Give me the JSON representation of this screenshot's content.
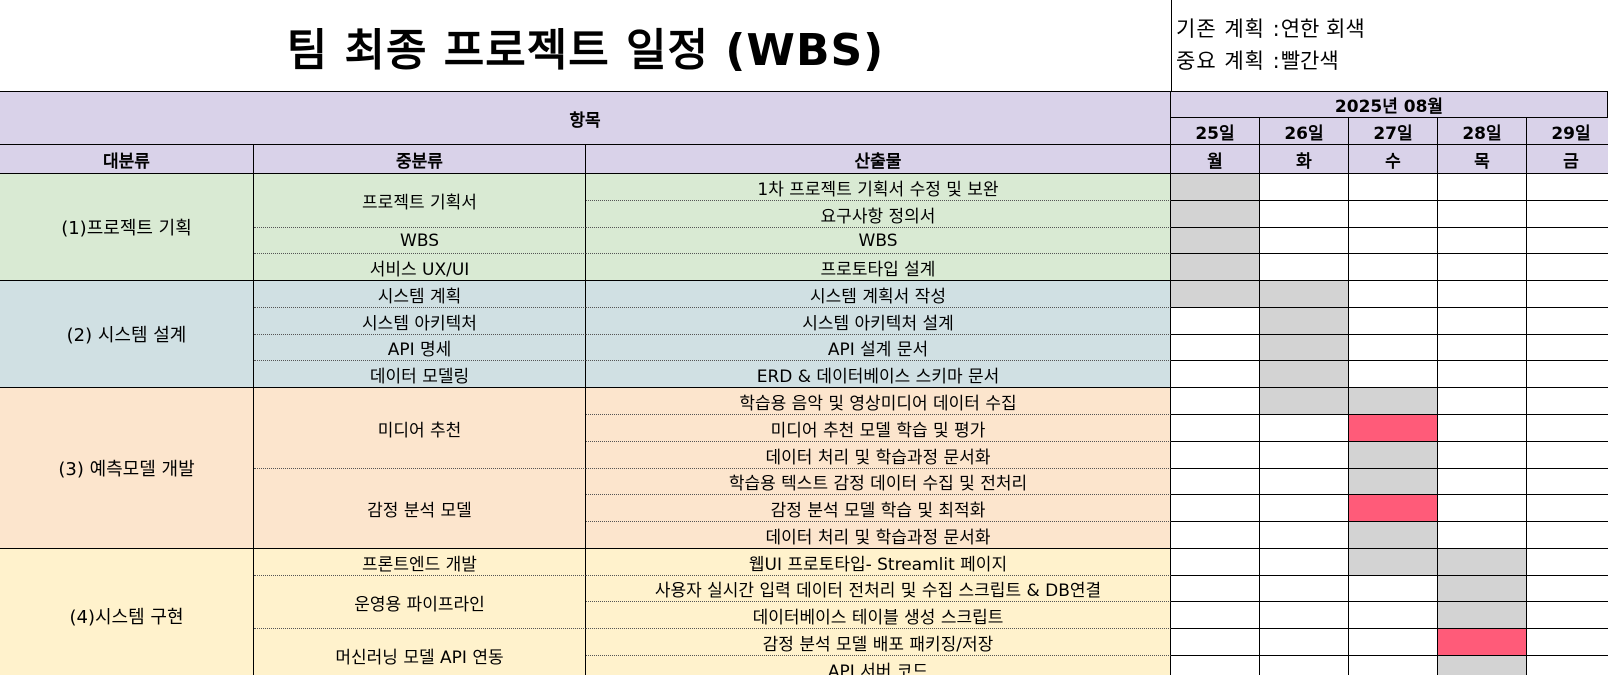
{
  "title": "팀 최종 프로젝트 일정 (WBS)",
  "legend": [
    {
      "label": "기존 계획 :",
      "value": "연한 회색"
    },
    {
      "label": "중요 계획 :",
      "value": "빨간색"
    }
  ],
  "header": {
    "items_label": "항목",
    "month_label": "2025년 08월",
    "col_major": "대분류",
    "col_middle": "중분류",
    "col_deliverable": "산출물"
  },
  "days": [
    {
      "date": "25일",
      "weekday": "월"
    },
    {
      "date": "26일",
      "weekday": "화"
    },
    {
      "date": "27일",
      "weekday": "수"
    },
    {
      "date": "28일",
      "weekday": "목"
    },
    {
      "date": "29일",
      "weekday": "금"
    }
  ],
  "colors": {
    "header_bg": "#d9d2e9",
    "group1_bg": "#d9ead3",
    "group2_bg": "#d0e0e3",
    "group3_bg": "#fce5cd",
    "group4_bg": "#fff2cc",
    "planned": "#d3d3d3",
    "important": "#ff5b79"
  },
  "categories": [
    {
      "label": "(1)프로젝트 기획",
      "group": "g1"
    },
    {
      "label": "(2) 시스템 설계",
      "group": "g2"
    },
    {
      "label": "(3) 예측모델 개발",
      "group": "g3"
    },
    {
      "label": "(4)시스템 구현",
      "group": "g4"
    }
  ],
  "subcategories": [
    {
      "label": "프로젝트 기획서"
    },
    {
      "label": "WBS"
    },
    {
      "label": "서비스 UX/UI"
    },
    {
      "label": "시스템 계획"
    },
    {
      "label": "시스템 아키텍처"
    },
    {
      "label": "API 명세"
    },
    {
      "label": "데이터 모델링"
    },
    {
      "label": "미디어 추천"
    },
    {
      "label": "감정 분석 모델"
    },
    {
      "label": "프론트엔드 개발"
    },
    {
      "label": "운영용 파이프라인"
    },
    {
      "label": "머신러닝 모델 API 연동"
    }
  ],
  "rows": [
    {
      "deliverable": "1차 프로젝트 기획서 수정 및 보완",
      "status": [
        "planned",
        "none",
        "none",
        "none",
        "none"
      ]
    },
    {
      "deliverable": "요구사항 정의서",
      "status": [
        "planned",
        "none",
        "none",
        "none",
        "none"
      ]
    },
    {
      "deliverable": "WBS",
      "status": [
        "planned",
        "none",
        "none",
        "none",
        "none"
      ]
    },
    {
      "deliverable": "프로토타입 설계",
      "status": [
        "planned",
        "none",
        "none",
        "none",
        "none"
      ]
    },
    {
      "deliverable": "시스템 계획서 작성",
      "status": [
        "planned",
        "planned",
        "none",
        "none",
        "none"
      ]
    },
    {
      "deliverable": "시스템 아키텍처 설계",
      "status": [
        "none",
        "planned",
        "none",
        "none",
        "none"
      ]
    },
    {
      "deliverable": "API 설계 문서",
      "status": [
        "none",
        "planned",
        "none",
        "none",
        "none"
      ]
    },
    {
      "deliverable": "ERD & 데이터베이스 스키마 문서",
      "status": [
        "none",
        "planned",
        "none",
        "none",
        "none"
      ]
    },
    {
      "deliverable": "학습용 음악 및 영상미디어 데이터 수집",
      "status": [
        "none",
        "planned",
        "planned",
        "none",
        "none"
      ]
    },
    {
      "deliverable": "미디어 추천 모델 학습 및 평가",
      "status": [
        "none",
        "none",
        "important",
        "none",
        "none"
      ]
    },
    {
      "deliverable": "데이터 처리 및 학습과정 문서화",
      "status": [
        "none",
        "none",
        "planned",
        "none",
        "none"
      ]
    },
    {
      "deliverable": "학습용 텍스트 감정 데이터 수집 및 전처리",
      "status": [
        "none",
        "none",
        "planned",
        "none",
        "none"
      ]
    },
    {
      "deliverable": "감정 분석 모델 학습 및 최적화",
      "status": [
        "none",
        "none",
        "important",
        "none",
        "none"
      ]
    },
    {
      "deliverable": "데이터 처리 및 학습과정 문서화",
      "status": [
        "none",
        "none",
        "planned",
        "none",
        "none"
      ]
    },
    {
      "deliverable": "웹UI 프로토타입- Streamlit 페이지",
      "status": [
        "none",
        "none",
        "planned",
        "planned",
        "none"
      ]
    },
    {
      "deliverable": "사용자 실시간 입력 데이터 전처리 및 수집 스크립트 & DB연결",
      "status": [
        "none",
        "none",
        "none",
        "planned",
        "none"
      ]
    },
    {
      "deliverable": "데이터베이스 테이블 생성 스크립트",
      "status": [
        "none",
        "none",
        "none",
        "planned",
        "none"
      ]
    },
    {
      "deliverable": "감정 분석 모델 배포 패키징/저장",
      "status": [
        "none",
        "none",
        "none",
        "important",
        "none"
      ]
    },
    {
      "deliverable": "API 서버 코드",
      "status": [
        "none",
        "none",
        "none",
        "planned",
        "none"
      ]
    }
  ]
}
